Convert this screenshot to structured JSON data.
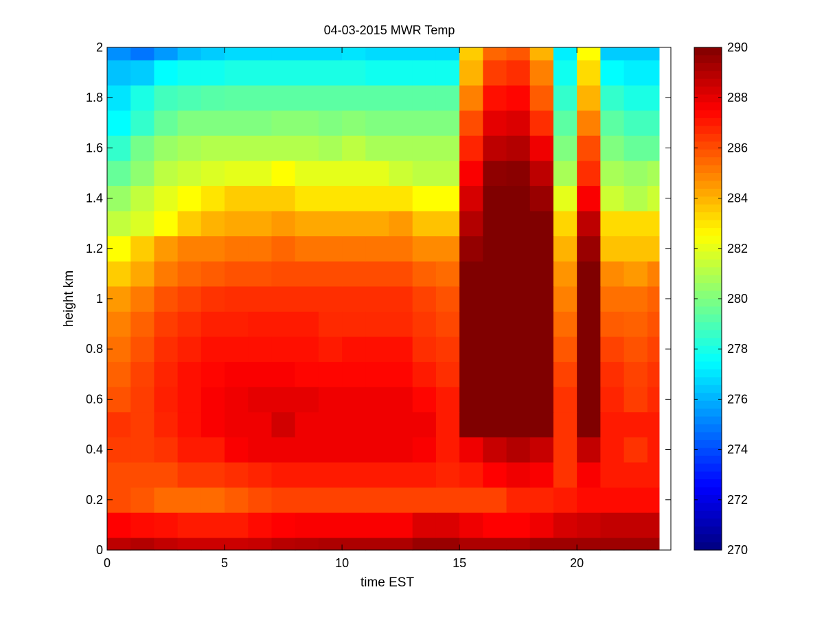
{
  "chart_data": {
    "type": "heatmap",
    "title": "04-03-2015 MWR Temp",
    "xlabel": "time EST",
    "ylabel": "height km",
    "xlim": [
      0,
      24
    ],
    "ylim": [
      0,
      2
    ],
    "x_ticks": [
      0,
      5,
      10,
      15,
      20
    ],
    "y_ticks": [
      0,
      0.2,
      0.4,
      0.6,
      0.8,
      1,
      1.2,
      1.4,
      1.6,
      1.8,
      2
    ],
    "x_tick_labels": [
      "0",
      "5",
      "10",
      "15",
      "20"
    ],
    "y_tick_labels": [
      "0",
      "0.2",
      "0.4",
      "0.6",
      "0.8",
      "1",
      "1.2",
      "1.4",
      "1.6",
      "1.8",
      "2"
    ],
    "colormap": "jet",
    "clim": [
      270,
      290
    ],
    "colorbar_ticks": [
      270,
      272,
      274,
      276,
      278,
      280,
      282,
      284,
      286,
      288,
      290
    ],
    "colorbar_tick_labels": [
      "270",
      "272",
      "274",
      "276",
      "278",
      "280",
      "282",
      "284",
      "286",
      "288",
      "290"
    ],
    "x_edges": [
      0,
      1,
      2,
      3,
      4,
      5,
      6,
      7,
      8,
      9,
      10,
      11,
      12,
      13,
      14,
      15,
      16,
      17,
      18,
      19,
      20,
      21,
      22,
      23,
      23.5
    ],
    "y_edges": [
      0,
      0.05,
      0.15,
      0.25,
      0.35,
      0.45,
      0.55,
      0.65,
      0.75,
      0.85,
      0.95,
      1.05,
      1.15,
      1.25,
      1.35,
      1.45,
      1.55,
      1.65,
      1.75,
      1.85,
      1.95,
      2.0
    ],
    "z": [
      [
        288.8,
        289.0,
        288.7,
        288.5,
        288.5,
        288.5,
        288.6,
        288.9,
        289.0,
        289.1,
        289.1,
        289.1,
        289.1,
        289.5,
        289.5,
        289.1,
        289.1,
        289.1,
        289.4,
        289.4,
        289.4,
        289.4,
        289.4,
        289.4
      ],
      [
        287.5,
        287.3,
        287.2,
        287.0,
        287.0,
        287.0,
        287.3,
        287.5,
        287.6,
        287.6,
        287.6,
        287.6,
        287.6,
        288.2,
        288.2,
        287.8,
        287.5,
        287.5,
        287.8,
        288.3,
        288.5,
        288.7,
        288.7,
        288.7
      ],
      [
        286.0,
        285.8,
        285.4,
        285.4,
        285.4,
        285.7,
        286.0,
        286.2,
        286.2,
        286.2,
        286.2,
        286.2,
        286.2,
        286.2,
        286.2,
        286.2,
        286.2,
        286.8,
        286.8,
        287.0,
        287.3,
        287.3,
        287.3,
        287.3
      ],
      [
        286.0,
        286.0,
        286.0,
        286.4,
        286.4,
        286.6,
        286.8,
        287.0,
        287.0,
        287.0,
        287.0,
        287.0,
        287.0,
        287.0,
        286.8,
        287.0,
        287.5,
        287.8,
        287.6,
        286.5,
        287.6,
        287.0,
        287.0,
        287.0
      ],
      [
        286.3,
        286.3,
        286.5,
        287.0,
        287.0,
        287.6,
        287.8,
        287.8,
        287.8,
        287.8,
        287.8,
        287.8,
        287.8,
        287.6,
        287.0,
        287.8,
        288.6,
        289.0,
        288.6,
        286.5,
        288.7,
        287.0,
        286.5,
        287.0
      ],
      [
        286.5,
        286.3,
        286.8,
        287.2,
        287.6,
        287.8,
        287.8,
        288.4,
        287.8,
        287.8,
        287.8,
        287.8,
        287.8,
        287.8,
        287.0,
        290.0,
        290.0,
        290.0,
        290.0,
        286.5,
        290.0,
        287.0,
        287.0,
        287.0
      ],
      [
        285.9,
        286.3,
        286.9,
        287.2,
        287.6,
        287.8,
        288.0,
        288.0,
        288.0,
        287.8,
        287.8,
        287.8,
        287.8,
        287.4,
        287.0,
        290.0,
        290.0,
        290.0,
        290.0,
        286.5,
        290.0,
        286.8,
        286.3,
        286.7
      ],
      [
        285.6,
        286.2,
        286.8,
        287.2,
        287.4,
        287.6,
        287.6,
        287.6,
        287.4,
        287.4,
        287.4,
        287.4,
        287.4,
        287.0,
        286.6,
        290.0,
        290.0,
        290.0,
        290.0,
        286.2,
        290.0,
        286.6,
        286.2,
        286.5
      ],
      [
        285.3,
        285.9,
        286.6,
        286.9,
        287.2,
        287.2,
        287.2,
        287.2,
        287.2,
        287.0,
        287.2,
        287.2,
        287.2,
        286.6,
        286.4,
        290.0,
        290.0,
        290.0,
        290.0,
        285.8,
        290.0,
        286.2,
        285.9,
        286.2
      ],
      [
        285.0,
        285.6,
        286.3,
        286.6,
        286.9,
        286.9,
        287.0,
        287.0,
        287.0,
        286.7,
        286.7,
        286.7,
        286.7,
        286.4,
        286.1,
        290.0,
        290.0,
        290.0,
        290.0,
        285.4,
        290.0,
        285.7,
        285.6,
        285.9
      ],
      [
        284.5,
        285.1,
        285.9,
        286.2,
        286.5,
        286.6,
        286.6,
        286.6,
        286.6,
        286.6,
        286.6,
        286.6,
        286.6,
        286.2,
        285.9,
        290.0,
        290.0,
        290.0,
        290.0,
        285.0,
        290.0,
        285.3,
        285.3,
        285.6
      ],
      [
        283.5,
        284.2,
        285.1,
        285.5,
        285.7,
        285.9,
        285.9,
        286.0,
        286.0,
        286.0,
        286.0,
        286.0,
        286.0,
        285.6,
        285.4,
        290.0,
        290.0,
        290.0,
        290.0,
        284.6,
        290.0,
        284.8,
        284.5,
        285.0
      ],
      [
        282.5,
        283.5,
        284.5,
        285.0,
        285.0,
        285.2,
        285.2,
        285.5,
        285.2,
        285.2,
        285.2,
        285.2,
        285.2,
        284.8,
        284.8,
        289.6,
        290.0,
        290.0,
        290.0,
        284.0,
        289.5,
        283.7,
        283.7,
        283.7
      ],
      [
        281.3,
        281.8,
        282.5,
        283.5,
        284.0,
        284.2,
        284.2,
        284.5,
        284.2,
        284.2,
        284.2,
        284.2,
        284.5,
        283.7,
        283.7,
        289.0,
        290.0,
        290.0,
        290.0,
        283.3,
        288.8,
        283.2,
        283.2,
        283.2
      ],
      [
        280.5,
        281.3,
        282.0,
        282.5,
        283.0,
        283.5,
        283.5,
        283.5,
        283.0,
        283.0,
        283.0,
        283.0,
        283.0,
        282.5,
        282.5,
        288.3,
        290.0,
        290.0,
        289.5,
        282.0,
        287.6,
        281.5,
        281.0,
        281.5
      ],
      [
        279.5,
        280.3,
        281.2,
        281.5,
        281.8,
        282.0,
        282.0,
        282.5,
        282.0,
        282.0,
        282.0,
        282.0,
        281.5,
        281.2,
        281.2,
        287.6,
        289.7,
        289.8,
        288.8,
        280.8,
        286.6,
        280.8,
        280.5,
        280.8
      ],
      [
        278.5,
        279.8,
        280.5,
        280.8,
        281.0,
        281.0,
        281.0,
        281.0,
        281.0,
        280.8,
        281.2,
        280.8,
        280.8,
        280.8,
        280.8,
        286.8,
        288.8,
        289.0,
        287.8,
        280.0,
        286.0,
        280.0,
        279.5,
        279.5
      ],
      [
        277.5,
        278.5,
        279.5,
        280.0,
        280.0,
        280.0,
        280.0,
        280.2,
        280.2,
        280.0,
        280.2,
        280.0,
        280.0,
        280.0,
        280.0,
        286.0,
        288.0,
        288.2,
        286.6,
        279.3,
        285.0,
        279.3,
        278.8,
        278.8
      ],
      [
        277.0,
        278.0,
        278.8,
        279.0,
        279.2,
        279.3,
        279.3,
        279.3,
        279.3,
        279.3,
        279.3,
        279.3,
        279.3,
        279.3,
        279.3,
        285.0,
        287.2,
        287.4,
        285.7,
        278.5,
        284.0,
        278.5,
        278.0,
        278.0
      ],
      [
        276.3,
        276.5,
        277.5,
        277.8,
        277.8,
        278.0,
        278.0,
        278.0,
        278.0,
        278.0,
        278.0,
        277.8,
        277.8,
        277.8,
        277.8,
        284.0,
        286.3,
        286.6,
        285.0,
        277.8,
        283.2,
        277.5,
        277.2,
        277.2
      ],
      [
        275.3,
        274.8,
        275.5,
        276.2,
        276.5,
        276.8,
        276.8,
        276.8,
        276.8,
        276.8,
        277.0,
        276.8,
        276.8,
        276.8,
        276.8,
        283.5,
        285.5,
        285.8,
        284.0,
        277.2,
        282.5,
        276.5,
        276.5,
        276.5
      ]
    ]
  }
}
